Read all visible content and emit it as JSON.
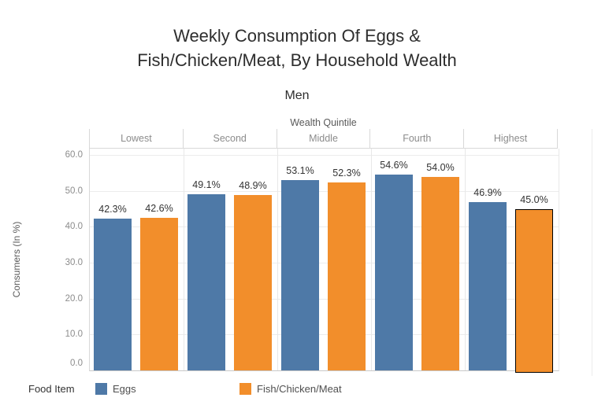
{
  "title": {
    "line1": "Weekly Consumption Of Eggs &",
    "line2": "Fish/Chicken/Meat, By Household Wealth"
  },
  "subtitle": "Men",
  "column_field_label": "Wealth Quintile",
  "chart_data": {
    "type": "bar",
    "title": "Weekly Consumption Of Eggs & Fish/Chicken/Meat, By Household Wealth",
    "subtitle": "Men",
    "column_header": "Wealth Quintile",
    "categories": [
      "Lowest",
      "Second",
      "Middle",
      "Fourth",
      "Highest"
    ],
    "series": [
      {
        "name": "Eggs",
        "color": "#4e79a7",
        "values": [
          42.3,
          49.1,
          53.1,
          54.6,
          46.9
        ],
        "labels": [
          "42.3%",
          "49.1%",
          "53.1%",
          "54.6%",
          "46.9%"
        ]
      },
      {
        "name": "Fish/Chicken/Meat",
        "color": "#f28e2b",
        "values": [
          42.6,
          48.9,
          52.3,
          54.0,
          45.0
        ],
        "labels": [
          "42.6%",
          "48.9%",
          "52.3%",
          "54.0%",
          "45.0%"
        ]
      }
    ],
    "ylabel": "Consumers (In %)",
    "yticks": [
      "0.0",
      "10.0",
      "20.0",
      "30.0",
      "40.0",
      "50.0",
      "60.0"
    ],
    "ylim": [
      0,
      61.8
    ],
    "grid": true,
    "legend_position": "bottom",
    "highlight": {
      "series": "Fish/Chicken/Meat",
      "category": "Highest",
      "border_color": "#000000"
    }
  },
  "legend": {
    "title": "Food Item",
    "items": [
      {
        "label": "Eggs",
        "color": "#4e79a7"
      },
      {
        "label": "Fish/Chicken/Meat",
        "color": "#f28e2b"
      }
    ]
  }
}
